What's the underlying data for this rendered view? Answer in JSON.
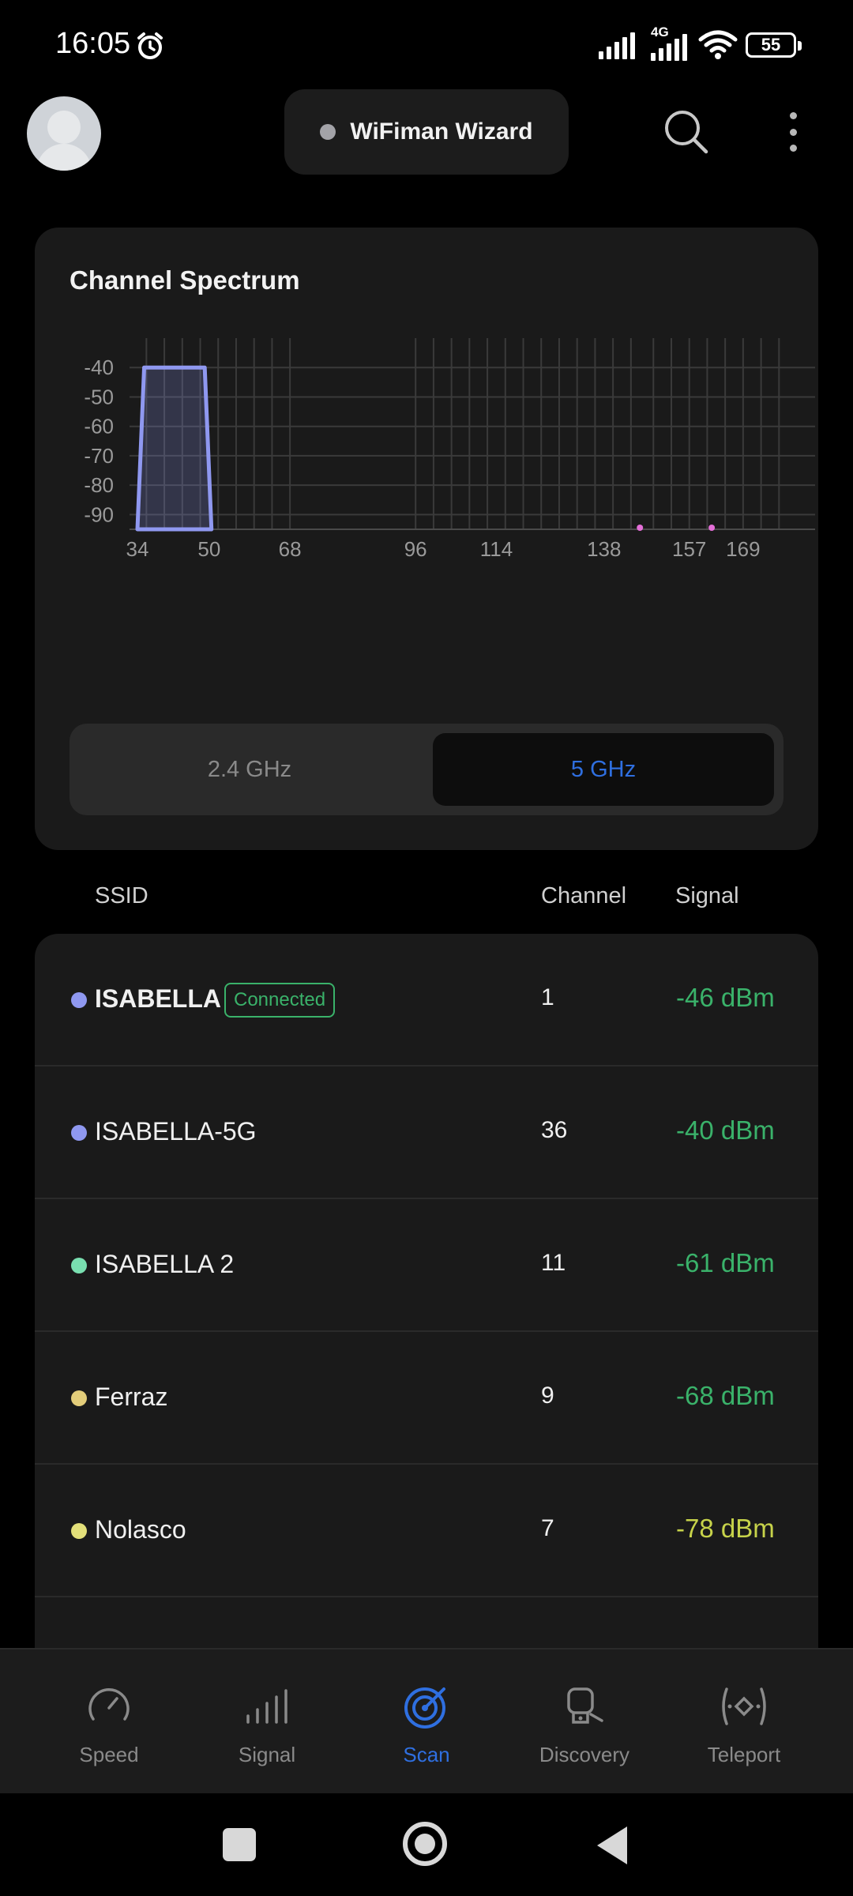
{
  "status_bar": {
    "time": "16:05",
    "network": "4G",
    "battery": "55"
  },
  "header": {
    "wizard_label": "WiFiman Wizard"
  },
  "spectrum": {
    "title": "Channel Spectrum",
    "bands": {
      "ghz24": "2.4 GHz",
      "ghz5": "5 GHz",
      "selected": "5 GHz"
    }
  },
  "chart_data": {
    "type": "area",
    "title": "Channel Spectrum",
    "xlabel": "",
    "ylabel": "",
    "x_ticks": [
      34,
      50,
      68,
      96,
      114,
      138,
      157,
      169
    ],
    "y_ticks": [
      -40,
      -50,
      -60,
      -70,
      -80,
      -90
    ],
    "ylim": [
      -95,
      -30
    ],
    "xlim": [
      34,
      178
    ],
    "grid": true,
    "series": [
      {
        "color": "#8f98f0",
        "shape": "trapezoid",
        "x": [
          34,
          35.5,
          49,
          50.5
        ],
        "y": [
          -95,
          -40,
          -40,
          -95
        ]
      }
    ],
    "markers": [
      {
        "x": 146,
        "y": -95,
        "color": "#e46fd8"
      },
      {
        "x": 162,
        "y": -95,
        "color": "#e46fd8"
      }
    ]
  },
  "list": {
    "headers": {
      "ssid": "SSID",
      "channel": "Channel",
      "signal": "Signal"
    },
    "rows": [
      {
        "ssid": "ISABELLA",
        "badge": "Connected",
        "channel": "1",
        "signal": "-46 dBm",
        "dot_color": "#8f98f0",
        "signal_color": "#3ab26a",
        "bold": true
      },
      {
        "ssid": "ISABELLA-5G",
        "badge": "",
        "channel": "36",
        "signal": "-40 dBm",
        "dot_color": "#8f98f0",
        "signal_color": "#3ab26a",
        "bold": false
      },
      {
        "ssid": "ISABELLA 2",
        "badge": "",
        "channel": "11",
        "signal": "-61 dBm",
        "dot_color": "#79dfb0",
        "signal_color": "#3ab26a",
        "bold": false
      },
      {
        "ssid": "Ferraz",
        "badge": "",
        "channel": "9",
        "signal": "-68 dBm",
        "dot_color": "#e3cd7a",
        "signal_color": "#3ab26a",
        "bold": false
      },
      {
        "ssid": "Nolasco",
        "badge": "",
        "channel": "7",
        "signal": "-78 dBm",
        "dot_color": "#e3e07a",
        "signal_color": "#c7d34a",
        "bold": false
      }
    ]
  },
  "bottom_nav": {
    "speed": "Speed",
    "signal": "Signal",
    "scan": "Scan",
    "discovery": "Discovery",
    "teleport": "Teleport",
    "active": "Scan"
  },
  "colors": {
    "accent": "#2f6fe0",
    "good": "#3ab26a",
    "card": "#1a1a1a"
  }
}
